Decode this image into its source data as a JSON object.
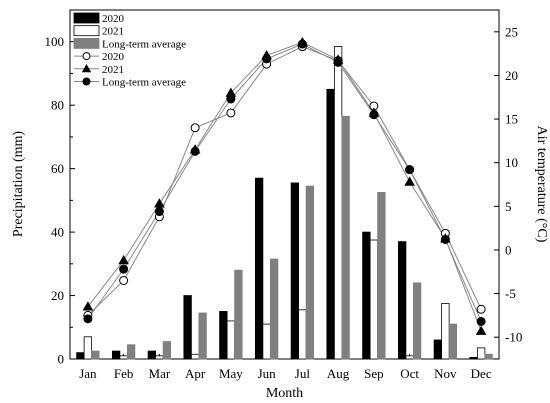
{
  "chart_data": {
    "type": "bar+line",
    "title": "",
    "xlabel": "Month",
    "ylabel_left": "Precipitation (mm)",
    "ylabel_right": "Air temperature (°C)",
    "categories": [
      "Jan",
      "Feb",
      "Mar",
      "Apr",
      "May",
      "Jun",
      "Jul",
      "Aug",
      "Sep",
      "Oct",
      "Nov",
      "Dec"
    ],
    "ylim_left": [
      0,
      110
    ],
    "yticks_left": [
      0,
      20,
      40,
      60,
      80,
      100
    ],
    "ylim_right": [
      -12.5,
      27.5
    ],
    "yticks_right": [
      -10,
      -5,
      0,
      5,
      10,
      15,
      20,
      25
    ],
    "grid": false,
    "legend_position": "top-left",
    "bar_series": [
      {
        "name": "2020",
        "color": "#000000",
        "fill": "#000000",
        "values": [
          2,
          2.5,
          2.5,
          20,
          15,
          57,
          55.5,
          85,
          40,
          37,
          6,
          0.5
        ]
      },
      {
        "name": "2021",
        "color": "#000000",
        "fill": "#ffffff",
        "values": [
          7,
          1,
          1,
          1.5,
          12,
          11,
          15.5,
          98.5,
          37.5,
          1,
          17.5,
          3.5
        ]
      },
      {
        "name": "Long-term average",
        "color": "#7f7f7f",
        "fill": "#808080",
        "values": [
          2.5,
          4.5,
          5.5,
          14.5,
          28,
          31.5,
          54.5,
          76.5,
          52.5,
          24,
          11,
          1.5
        ]
      }
    ],
    "line_series": [
      {
        "name": "2020",
        "marker": "circle-open",
        "values": [
          -7.5,
          -3.5,
          3.8,
          14,
          15.7,
          21.3,
          23.3,
          21.7,
          16.5,
          9.2,
          1.9,
          -6.8
        ]
      },
      {
        "name": "2021",
        "marker": "triangle-filled",
        "values": [
          -6.5,
          -1.2,
          5.3,
          11.5,
          18,
          22.3,
          23.8,
          21.8,
          15.7,
          7.8,
          1.3,
          -9.3
        ]
      },
      {
        "name": "Long-term average",
        "marker": "circle-filled",
        "values": [
          -7.9,
          -2.2,
          4.4,
          11.3,
          17.3,
          21.9,
          23.6,
          21.5,
          15.5,
          9.2,
          1.2,
          -8.2
        ]
      }
    ]
  }
}
